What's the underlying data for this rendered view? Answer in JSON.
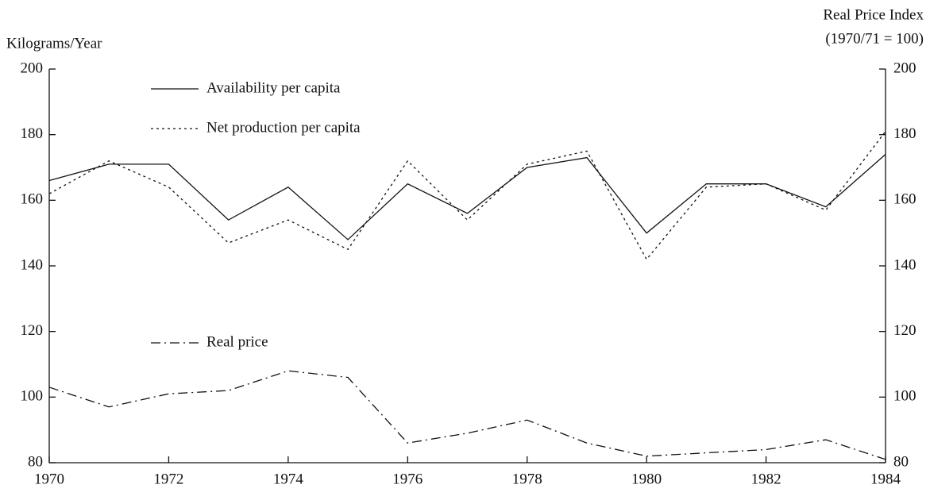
{
  "chart_data": {
    "type": "line",
    "y_label": "Kilograms/Year",
    "y2_label": [
      "Real Price Index",
      "(1970/71 = 100)"
    ],
    "x": [
      1970,
      1971,
      1972,
      1973,
      1974,
      1975,
      1976,
      1977,
      1978,
      1979,
      1980,
      1981,
      1982,
      1983,
      1984
    ],
    "xlim": [
      1970,
      1984
    ],
    "xticks": [
      1970,
      1972,
      1974,
      1976,
      1978,
      1980,
      1982,
      1984
    ],
    "ylim": [
      80,
      200
    ],
    "yticks": [
      80,
      100,
      120,
      140,
      160,
      180,
      200
    ],
    "y2lim": [
      80,
      200
    ],
    "y2ticks": [
      80,
      100,
      120,
      140,
      160,
      180,
      200
    ],
    "series": [
      {
        "name": "Availability per capita",
        "color": "#111111",
        "style": "solid",
        "values": [
          166,
          171,
          171,
          154,
          164,
          148,
          165,
          156,
          170,
          173,
          150,
          165,
          165,
          158,
          174
        ]
      },
      {
        "name": "Net production per capita",
        "color": "#111111",
        "style": "dotted",
        "values": [
          162,
          172,
          164,
          147,
          154,
          145,
          172,
          154,
          171,
          175,
          142,
          164,
          165,
          157,
          181
        ]
      },
      {
        "name": "Real price",
        "color": "#111111",
        "style": "dashdot",
        "axis": "y2",
        "values": [
          103,
          97,
          101,
          102,
          108,
          106,
          86,
          89,
          93,
          86,
          82,
          83,
          84,
          87,
          81
        ]
      }
    ]
  }
}
